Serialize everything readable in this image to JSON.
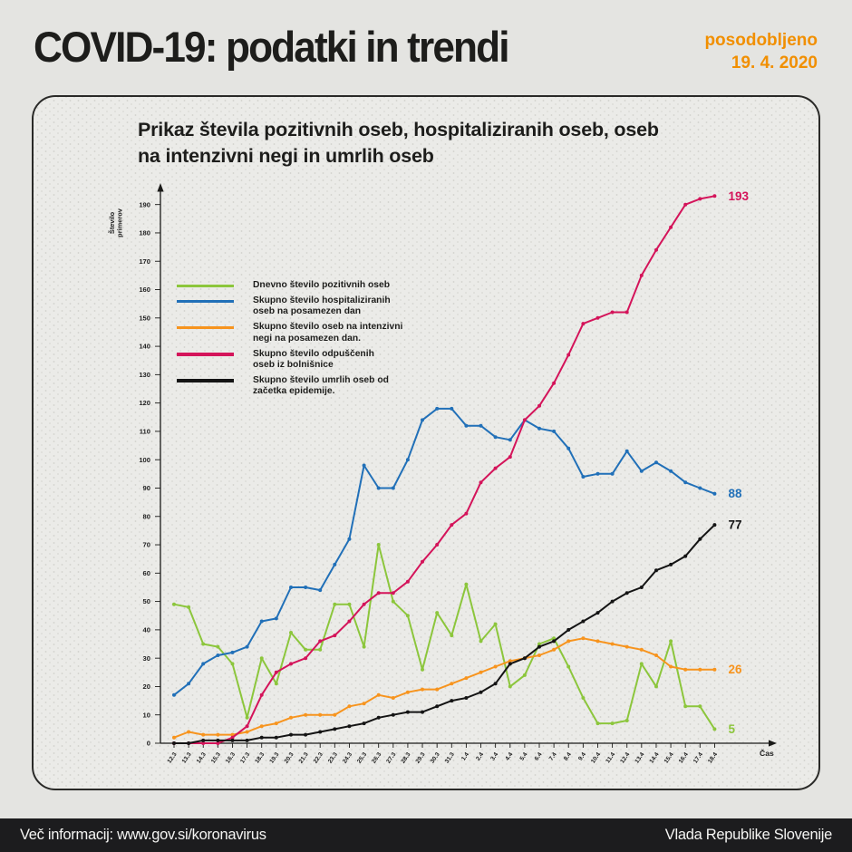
{
  "header": {
    "title": "COVID-19: podatki in trendi",
    "updated_label": "posodobljeno",
    "updated_date": "19. 4. 2020",
    "accent_color": "#f18f00"
  },
  "footer": {
    "left": "Več informacij: www.gov.si/koronavirus",
    "right": "Vlada Republike Slovenije"
  },
  "chart_data": {
    "type": "line",
    "title": "Prikaz števila pozitivnih oseb, hospitaliziranih oseb, oseb na intenzivni negi in umrlih oseb",
    "title_lines": [
      "Prikaz števila pozitivnih oseb, hospitaliziranih oseb, oseb",
      "na intenzivni negi in umrlih oseb"
    ],
    "ylabel": "Število primerov",
    "ylabel_lines": [
      "Število",
      "primerov"
    ],
    "xlabel": "Čas",
    "ylim": [
      0,
      195
    ],
    "ytick_step": 10,
    "ytick_max": 190,
    "grid": "dotted background",
    "legend_position": "upper-left",
    "categories": [
      "12.3",
      "13.3",
      "14.3",
      "15.3",
      "16.3",
      "17.3",
      "18.3",
      "19.3",
      "20.3",
      "21.3",
      "22.3",
      "23.3",
      "24.3",
      "25.3",
      "26.3",
      "27.3",
      "28.3",
      "29.3",
      "30.3",
      "31.3",
      "1.4",
      "2.4",
      "3.4",
      "4.4",
      "5.4",
      "6.4",
      "7.4",
      "8.4",
      "9.4",
      "10.4",
      "11.4",
      "12.4",
      "13.4",
      "14.4",
      "15.4",
      "16.4",
      "17.4",
      "18.4"
    ],
    "series": [
      {
        "id": "positive",
        "name": "Dnevno število pozitivnih oseb",
        "legend_lines": [
          "Dnevno število pozitivnih oseb"
        ],
        "color": "#8cc63c",
        "end_label": "5",
        "values": [
          49,
          48,
          35,
          34,
          28,
          9,
          30,
          21,
          39,
          33,
          33,
          49,
          49,
          34,
          70,
          50,
          45,
          26,
          46,
          38,
          56,
          36,
          42,
          20,
          24,
          35,
          37,
          27,
          16,
          7,
          7,
          8,
          28,
          20,
          36,
          13,
          13,
          5
        ]
      },
      {
        "id": "hospitalized",
        "name": "Skupno število hospitaliziranih oseb na posamezen dan",
        "legend_lines": [
          "Skupno število hospitaliziranih",
          "oseb na posamezen dan"
        ],
        "color": "#2170b8",
        "end_label": "88",
        "values": [
          17,
          21,
          28,
          31,
          32,
          34,
          43,
          44,
          55,
          55,
          54,
          63,
          72,
          98,
          90,
          90,
          100,
          114,
          118,
          118,
          112,
          112,
          108,
          107,
          114,
          111,
          110,
          104,
          94,
          95,
          95,
          103,
          96,
          99,
          96,
          92,
          90,
          88
        ]
      },
      {
        "id": "icu",
        "name": "Skupno število oseb na intenzivni negi na posamezen dan.",
        "legend_lines": [
          "Skupno število oseb na intenzivni",
          "negi na posamezen dan."
        ],
        "color": "#f7941e",
        "end_label": "26",
        "values": [
          2,
          4,
          3,
          3,
          3,
          4,
          6,
          7,
          9,
          10,
          10,
          10,
          13,
          14,
          17,
          16,
          18,
          19,
          19,
          21,
          23,
          25,
          27,
          29,
          30,
          31,
          33,
          36,
          37,
          36,
          35,
          34,
          33,
          31,
          27,
          26,
          26,
          26
        ]
      },
      {
        "id": "discharged",
        "name": "Skupno število odpuščenih oseb iz bolnišnice",
        "legend_lines": [
          "Skupno število odpuščenih",
          "oseb iz bolnišnice"
        ],
        "color": "#d4145a",
        "end_label": "193",
        "values": [
          0,
          0,
          0,
          0,
          2,
          6,
          17,
          25,
          28,
          30,
          36,
          38,
          43,
          49,
          53,
          53,
          57,
          64,
          70,
          77,
          81,
          92,
          97,
          101,
          114,
          119,
          127,
          137,
          148,
          150,
          152,
          152,
          165,
          174,
          182,
          190,
          192,
          193
        ]
      },
      {
        "id": "deaths",
        "name": "Skupno število umrlih oseb od začetka epidemije.",
        "legend_lines": [
          "Skupno število umrlih oseb od",
          "začetka epidemije."
        ],
        "color": "#141414",
        "end_label": "77",
        "values": [
          0,
          0,
          1,
          1,
          1,
          1,
          2,
          2,
          3,
          3,
          4,
          5,
          6,
          7,
          9,
          10,
          11,
          11,
          13,
          15,
          16,
          18,
          21,
          28,
          30,
          34,
          36,
          40,
          43,
          46,
          50,
          53,
          55,
          61,
          63,
          66,
          72,
          77
        ]
      }
    ]
  }
}
